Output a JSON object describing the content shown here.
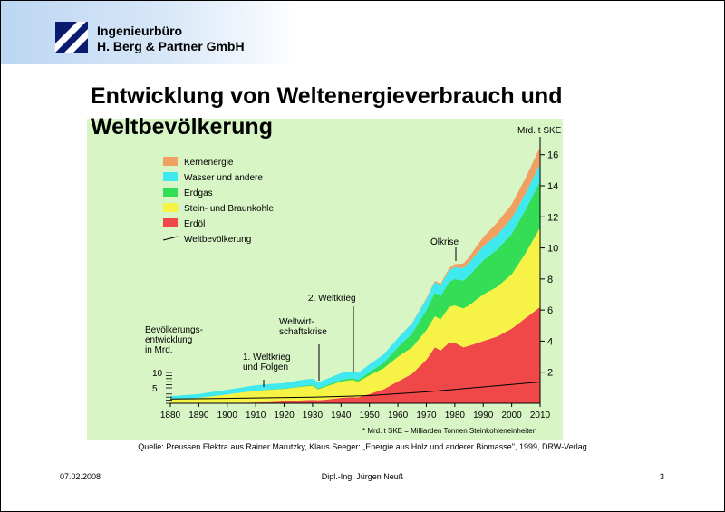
{
  "company": {
    "line1": "Ingenieurbüro",
    "line2": "H. Berg & Partner GmbH"
  },
  "slide": {
    "title_line1": "Entwicklung von Weltenergieverbrauch und",
    "title_line2": "Weltbevölkerung"
  },
  "chart_data": {
    "type": "area",
    "ylabel": "Mrd. t SKE *",
    "footnote": "* Mrd. t SKE = Milliarden Tonnen Steinkohleneinheiten",
    "x_ticks": [
      1880,
      1890,
      1900,
      1910,
      1920,
      1930,
      1940,
      1950,
      1960,
      1970,
      1980,
      1990,
      2000,
      2010
    ],
    "y_ticks": [
      2,
      4,
      6,
      8,
      10,
      12,
      14,
      16
    ],
    "ylim": [
      0,
      17.5
    ],
    "xlim": [
      1880,
      2010
    ],
    "x": [
      1880,
      1890,
      1900,
      1910,
      1915,
      1920,
      1925,
      1930,
      1932,
      1935,
      1940,
      1944,
      1946,
      1950,
      1955,
      1960,
      1965,
      1970,
      1973,
      1975,
      1978,
      1980,
      1983,
      1985,
      1990,
      1995,
      2000,
      2005,
      2010
    ],
    "series": [
      {
        "name": "Erdöl",
        "color": "#f04848",
        "values": [
          0,
          0,
          0.02,
          0.05,
          0.07,
          0.12,
          0.18,
          0.22,
          0.2,
          0.24,
          0.35,
          0.4,
          0.38,
          0.6,
          0.9,
          1.4,
          1.9,
          2.8,
          3.6,
          3.4,
          3.9,
          3.9,
          3.6,
          3.7,
          4.0,
          4.3,
          4.8,
          5.5,
          6.2
        ]
      },
      {
        "name": "Stein- und Braunkohle",
        "color": "#f7f246",
        "values": [
          0.25,
          0.35,
          0.55,
          0.75,
          0.8,
          0.8,
          0.85,
          0.9,
          0.7,
          0.85,
          1.05,
          1.1,
          1.0,
          1.2,
          1.35,
          1.6,
          1.7,
          1.9,
          2.0,
          2.0,
          2.3,
          2.4,
          2.5,
          2.6,
          3.0,
          3.2,
          3.5,
          4.2,
          5.1
        ]
      },
      {
        "name": "Erdgas",
        "color": "#33dd55",
        "values": [
          0,
          0,
          0,
          0.01,
          0.02,
          0.03,
          0.04,
          0.06,
          0.06,
          0.07,
          0.1,
          0.12,
          0.12,
          0.2,
          0.35,
          0.6,
          0.9,
          1.3,
          1.5,
          1.5,
          1.6,
          1.7,
          1.8,
          1.9,
          2.2,
          2.4,
          2.6,
          2.8,
          3.0
        ]
      },
      {
        "name": "Wasser und andere",
        "color": "#40e8f0",
        "values": [
          0.2,
          0.25,
          0.3,
          0.35,
          0.35,
          0.35,
          0.4,
          0.4,
          0.4,
          0.4,
          0.45,
          0.45,
          0.45,
          0.5,
          0.55,
          0.6,
          0.65,
          0.7,
          0.7,
          0.7,
          0.75,
          0.75,
          0.8,
          0.85,
          0.9,
          0.95,
          1.0,
          1.05,
          1.1
        ]
      },
      {
        "name": "Kernenergie",
        "color": "#f0a060",
        "values": [
          0,
          0,
          0,
          0,
          0,
          0,
          0,
          0,
          0,
          0,
          0,
          0,
          0,
          0,
          0,
          0,
          0.02,
          0.05,
          0.08,
          0.1,
          0.15,
          0.2,
          0.3,
          0.35,
          0.6,
          0.8,
          0.9,
          1.0,
          1.1
        ]
      }
    ],
    "population": {
      "name": "Weltbevölkerung",
      "x": [
        1880,
        1900,
        1930,
        1950,
        1970,
        1990,
        2010
      ],
      "values": [
        1.4,
        1.6,
        2.0,
        2.5,
        3.7,
        5.3,
        6.9
      ]
    },
    "population_scale_label": "Bevölkerungs-\nentwicklung\nin Mrd.",
    "population_scale_ticks": [
      10,
      5
    ],
    "annotations": [
      {
        "text": "1. Weltkrieg\nund Folgen",
        "x": 1914
      },
      {
        "text": "Weltwirt-\nschaftskrise",
        "x": 1932
      },
      {
        "text": "2. Weltkrieg",
        "x": 1945
      },
      {
        "text": "Ölkrise",
        "x": 1973
      }
    ]
  },
  "source": "Quelle: Preussen Elektra aus Rainer Marutzky, Klaus Seeger: „Energie aus Holz und anderer Biomasse\", 1999, DRW-Verlag",
  "footer": {
    "date": "07.02.2008",
    "author": "Dipl.-Ing. Jürgen Neuß",
    "page": "3"
  }
}
